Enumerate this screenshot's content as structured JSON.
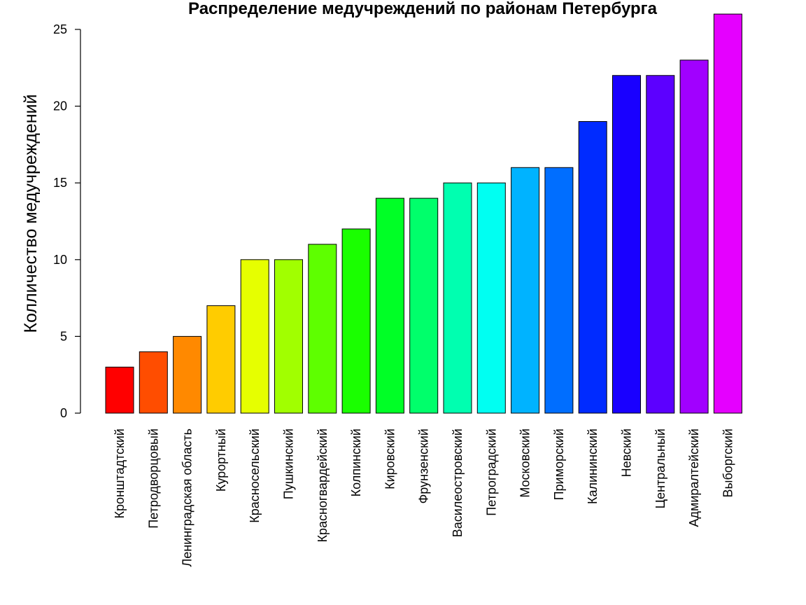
{
  "chart_data": {
    "type": "bar",
    "title": "Распределение медучреждений по районам Петербурга",
    "xlabel": "",
    "ylabel": "Колличество медучреждений",
    "ylim": [
      0,
      26
    ],
    "yticks": [
      0,
      5,
      10,
      15,
      20,
      25
    ],
    "grid": false,
    "legend": "none",
    "categories": [
      "Кронштадтский",
      "Петродворцовый",
      "Ленинградская область",
      "Курортный",
      "Красносельский",
      "Пушкинский",
      "Красногвардейский",
      "Колпинский",
      "Кировский",
      "Фрунзенский",
      "Василеостровский",
      "Петроградский",
      "Московский",
      "Приморский",
      "Калининский",
      "Невский",
      "Центральный",
      "Адмиралтейский",
      "Выборгский"
    ],
    "values": [
      3,
      4,
      5,
      7,
      10,
      10,
      11,
      12,
      14,
      14,
      15,
      15,
      16,
      16,
      19,
      22,
      22,
      23,
      26
    ],
    "colors": [
      "#FF0000",
      "#FF4D00",
      "#FF8900",
      "#FFCC00",
      "#E6FF00",
      "#A1FF00",
      "#5EFF00",
      "#1AFF00",
      "#00FF26",
      "#00FF6B",
      "#00FFB0",
      "#00FFF2",
      "#00B3FF",
      "#006EFF",
      "#002BFF",
      "#1900FF",
      "#5C00FF",
      "#A100FF",
      "#E500FF"
    ]
  }
}
